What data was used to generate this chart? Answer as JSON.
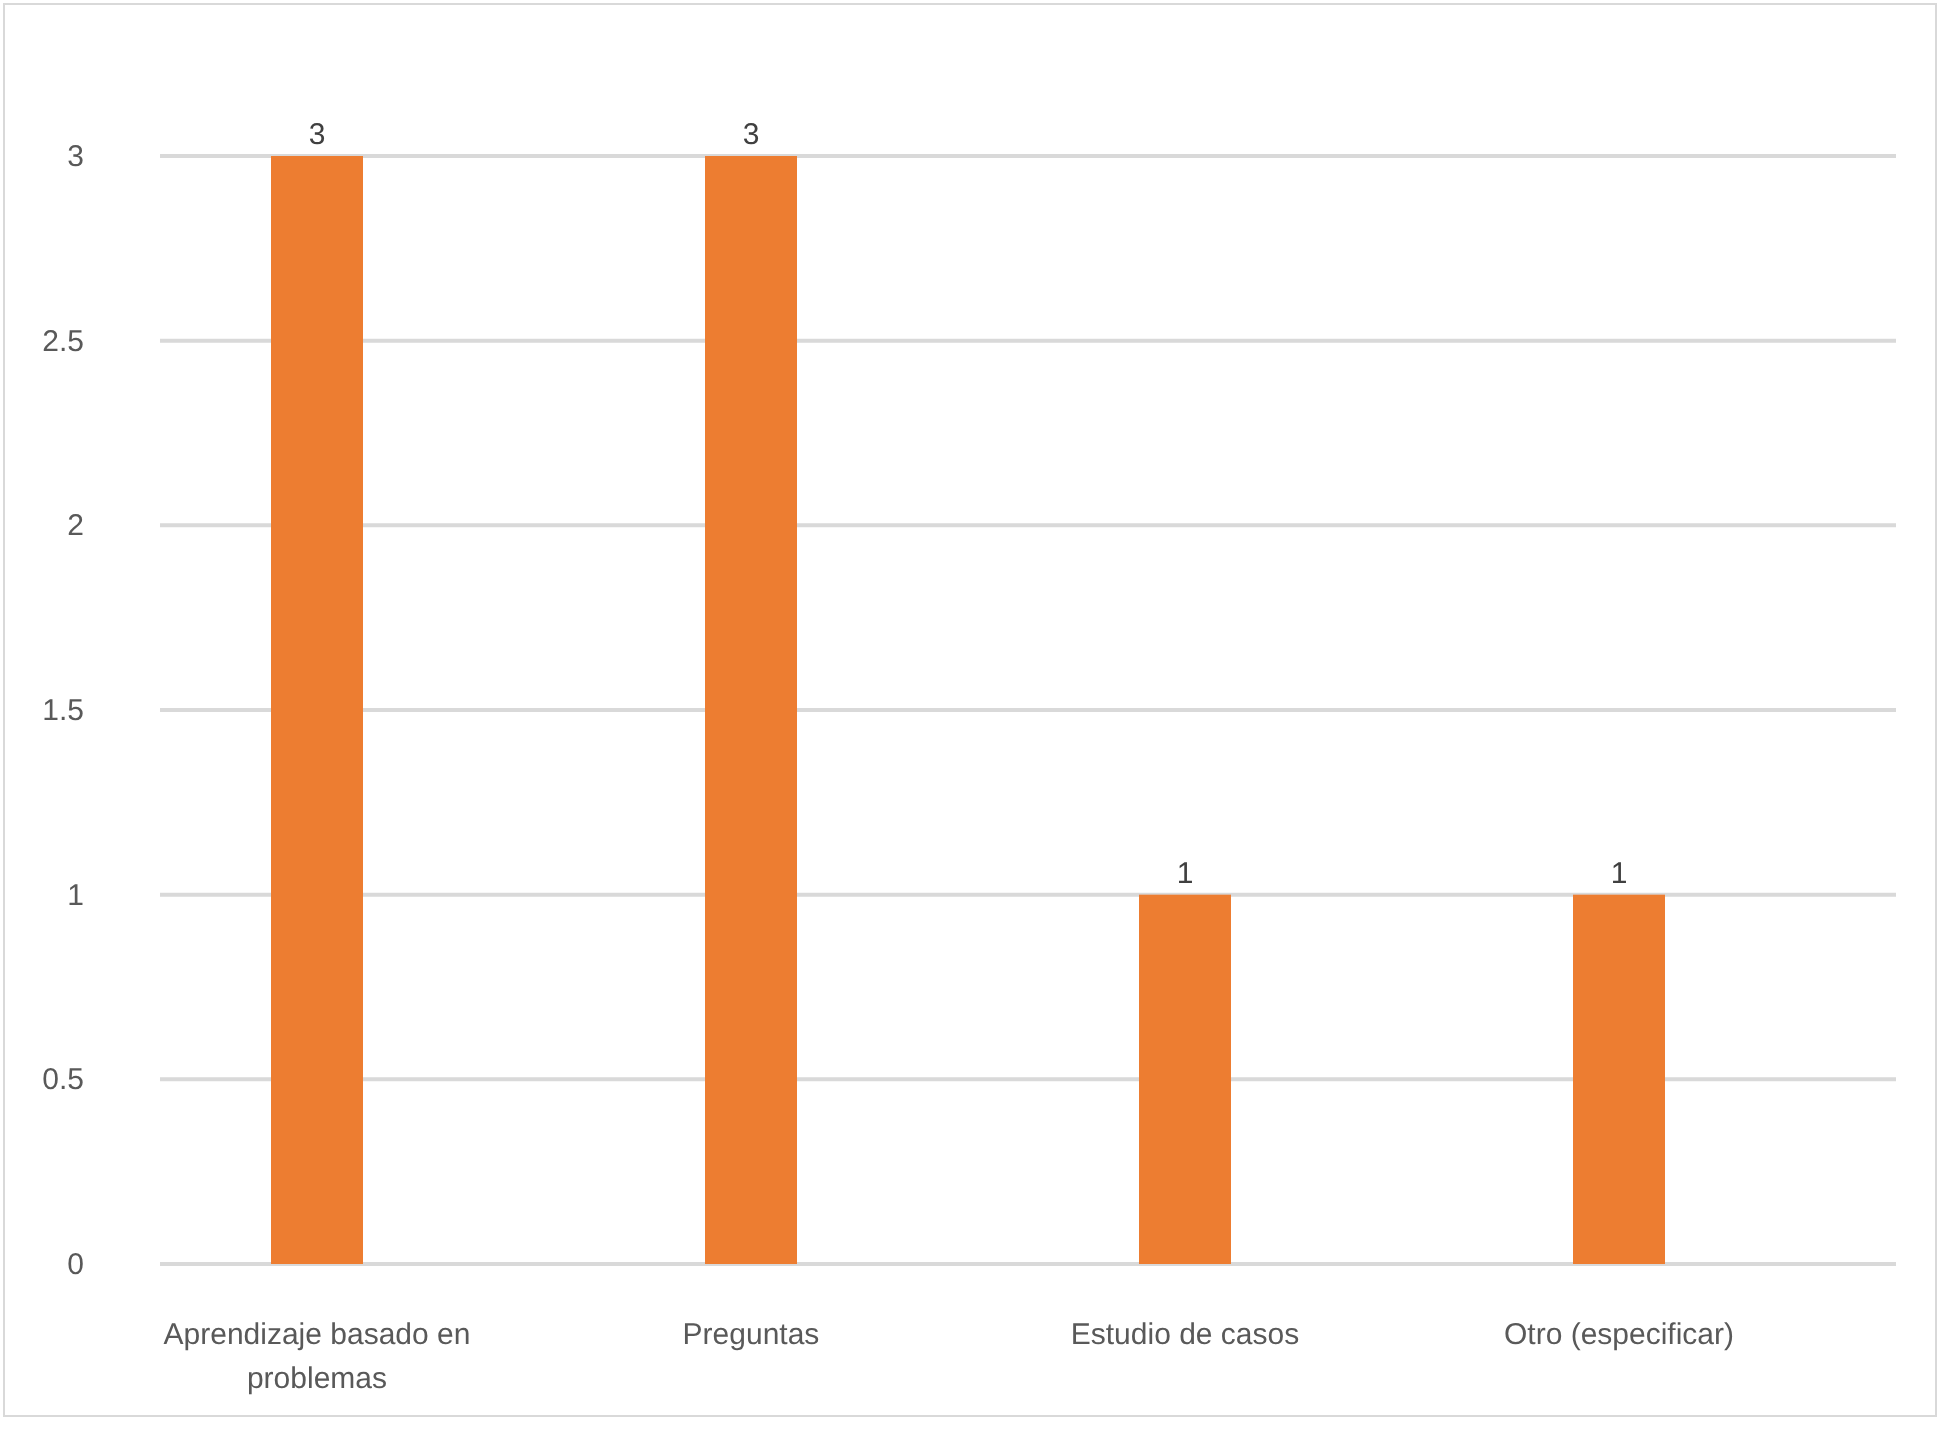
{
  "chart_data": {
    "type": "bar",
    "categories": [
      "Aprendizaje basado en problemas",
      "Preguntas",
      "Estudio de casos",
      "Otro (especificar)"
    ],
    "values": [
      3,
      3,
      1,
      1
    ],
    "color": "#ed7d31",
    "ylim": [
      0,
      3
    ],
    "yticks": [
      0,
      0.5,
      1,
      1.5,
      2,
      2.5,
      3
    ],
    "grid": "y",
    "data_labels": true
  }
}
